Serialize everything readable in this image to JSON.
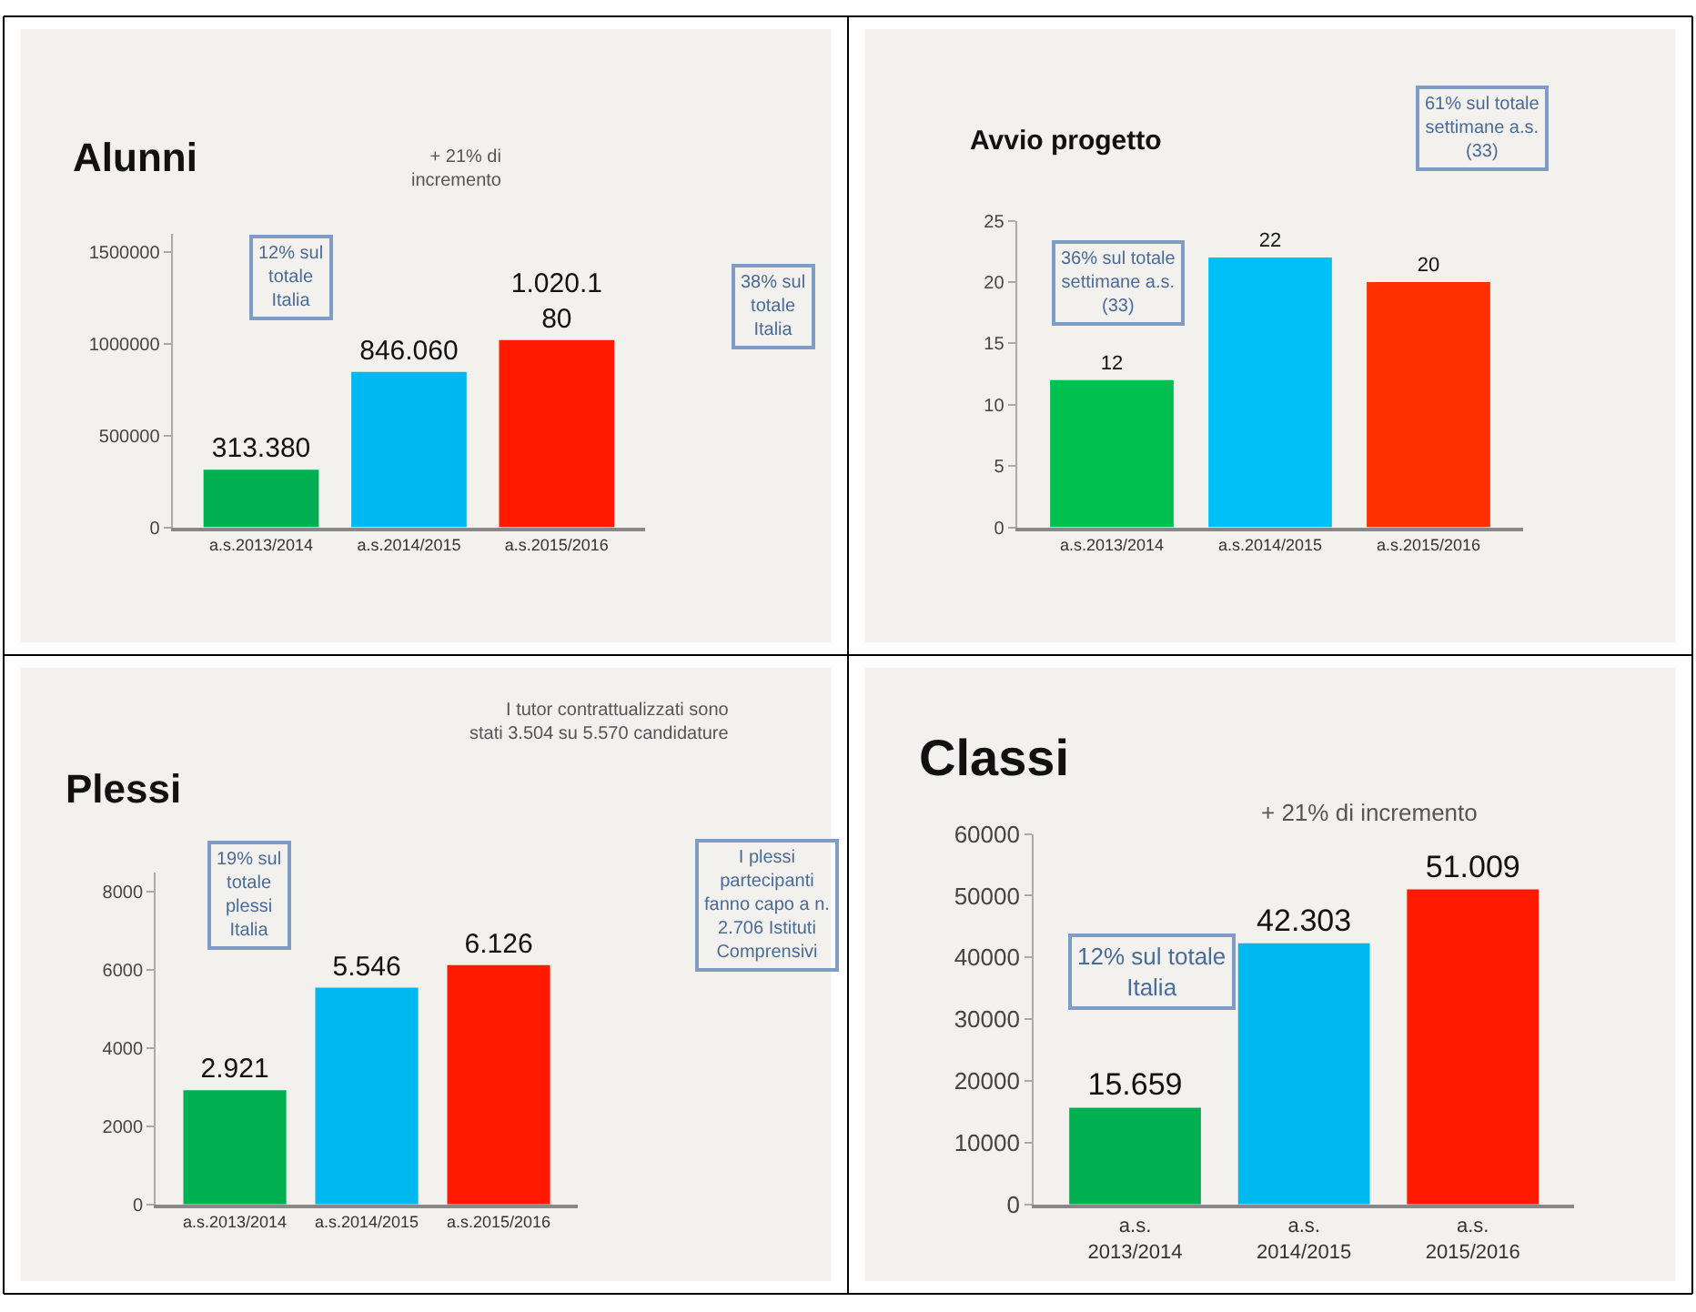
{
  "chart_data": [
    {
      "type": "bar",
      "title": "Alunni",
      "categories": [
        "a.s.2013/2014",
        "a.s.2014/2015",
        "a.s.2015/2016"
      ],
      "values": [
        313380,
        846060,
        1020180
      ],
      "colors": [
        "#00b050",
        "#00b8f0",
        "#ff1a00"
      ],
      "value_labels": [
        "313.380",
        "846.060",
        "1.020.180"
      ],
      "ylim": [
        0,
        1600000
      ],
      "yticks": [
        0,
        500000,
        1000000,
        1500000
      ],
      "annotations": [
        "12% sul totale Italia",
        "+ 21% di incremento",
        "38% sul totale Italia"
      ]
    },
    {
      "type": "bar",
      "title": "Avvio progetto",
      "categories": [
        "a.s.2013/2014",
        "a.s.2014/2015",
        "a.s.2015/2016"
      ],
      "values": [
        12,
        22,
        20
      ],
      "colors": [
        "#00c050",
        "#00c0f8",
        "#ff3000"
      ],
      "data_labels": true,
      "ylim": [
        0,
        25
      ],
      "yticks": [
        0,
        5,
        10,
        15,
        20,
        25
      ],
      "annotations": [
        "36% sul totale settimane a.s. (33)",
        "61% sul totale settimane a.s. (33)"
      ]
    },
    {
      "type": "bar",
      "title": "Plessi",
      "categories": [
        "a.s.2013/2014",
        "a.s.2014/2015",
        "a.s.2015/2016"
      ],
      "values": [
        2921,
        5546,
        6126
      ],
      "colors": [
        "#00b050",
        "#00b8f0",
        "#ff1a00"
      ],
      "value_labels": [
        "2.921",
        "5.546",
        "6.126"
      ],
      "ylim": [
        0,
        8500
      ],
      "yticks": [
        0,
        2000,
        4000,
        6000,
        8000
      ],
      "annotations": [
        "I tutor contrattualizzati sono stati 3.504 su 5.570 candidature",
        "19% sul totale plessi Italia",
        "I plessi partecipanti fanno capo a n. 2.706 Istituti Comprensivi"
      ]
    },
    {
      "type": "bar",
      "title": "Classi",
      "categories": [
        "a.s. 2013/2014",
        "a.s. 2014/2015",
        "a.s. 2015/2016"
      ],
      "values": [
        15659,
        42303,
        51009
      ],
      "colors": [
        "#00b050",
        "#00b8f0",
        "#ff1a00"
      ],
      "value_labels": [
        "15.659",
        "42.303",
        "51.009"
      ],
      "ylim": [
        0,
        60000
      ],
      "yticks": [
        0,
        10000,
        20000,
        30000,
        40000,
        50000,
        60000
      ],
      "annotations": [
        "+ 21% di incremento",
        "12% sul totale Italia"
      ]
    }
  ]
}
